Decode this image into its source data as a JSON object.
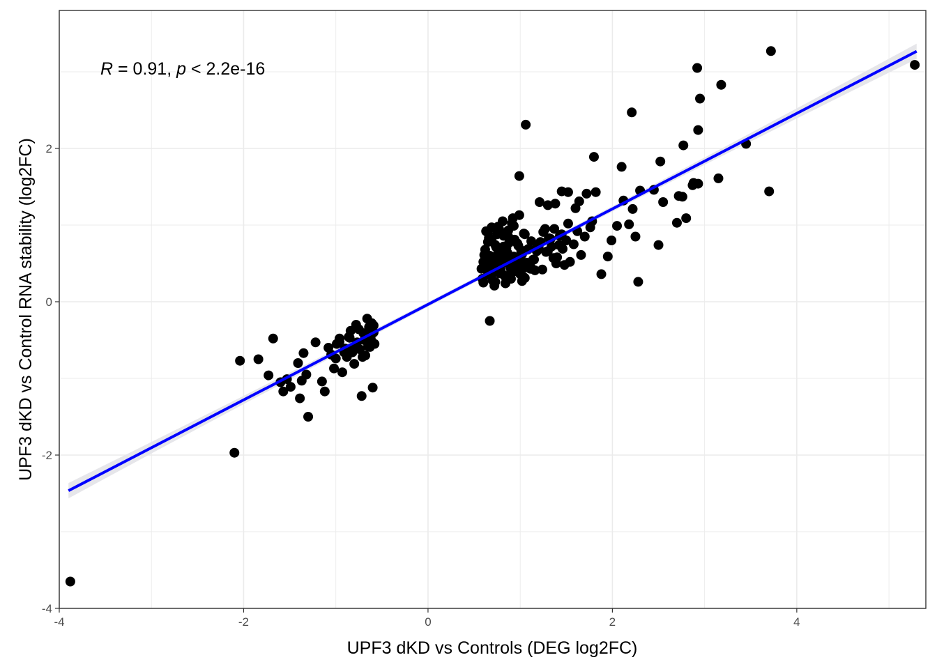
{
  "chart_data": {
    "type": "scatter",
    "xlabel": "UPF3 dKD vs Controls (DEG log2FC)",
    "ylabel": "UPF3 dKD vs Control RNA stability (log2FC)",
    "xlim": [
      -4.0,
      5.4
    ],
    "ylim": [
      -4.0,
      3.8
    ],
    "x_ticks": [
      -4,
      -2,
      0,
      2,
      4
    ],
    "x_tick_labels": [
      "-4",
      "-2",
      "0",
      "2",
      "4"
    ],
    "y_ticks": [
      -4,
      -2,
      0,
      2
    ],
    "y_tick_labels": [
      "-4",
      "-2",
      "0",
      "2"
    ],
    "grid": true,
    "annotation": {
      "r_symbol": "R",
      "r_text": " = 0.91, ",
      "p_symbol": "p",
      "p_text": " < 2.2e-16"
    },
    "regression_line": {
      "color": "#0000ff",
      "band_color": "#e6e6ea",
      "slope": 0.623,
      "intercept": -0.035,
      "x_range": [
        -3.9,
        5.3
      ]
    },
    "point_color": "#000000",
    "x": [
      -3.88,
      -2.1,
      -2.04,
      -1.84,
      -1.73,
      -1.68,
      -1.6,
      -1.57,
      -1.53,
      -1.49,
      -1.41,
      -1.39,
      -1.37,
      -1.35,
      -1.32,
      -1.3,
      -1.22,
      -1.15,
      -1.12,
      -1.08,
      -1.05,
      -1.02,
      -0.99,
      -0.96,
      -0.93,
      -0.9,
      -0.88,
      -0.85,
      -0.82,
      -0.8,
      -0.78,
      -0.75,
      -0.72,
      -0.7,
      -0.68,
      -0.66,
      -0.64,
      -0.62,
      -0.61,
      -0.6,
      -0.59,
      -0.58,
      -0.63,
      -0.71,
      -0.77,
      -0.81,
      -0.86,
      -0.91,
      -0.96,
      -1.0,
      -0.84,
      -0.74,
      -0.69,
      -0.65,
      -0.62,
      -0.59,
      0.67,
      0.58,
      0.6,
      0.62,
      0.63,
      0.65,
      0.67,
      0.69,
      0.7,
      0.72,
      0.74,
      0.76,
      0.78,
      0.8,
      0.82,
      0.84,
      0.86,
      0.88,
      0.9,
      0.92,
      0.94,
      0.96,
      0.98,
      1.0,
      1.02,
      1.04,
      1.06,
      1.08,
      1.1,
      1.12,
      1.14,
      1.16,
      1.18,
      1.2,
      0.59,
      0.61,
      0.64,
      0.66,
      0.68,
      0.71,
      0.73,
      0.75,
      0.77,
      0.79,
      0.81,
      0.83,
      0.85,
      0.87,
      0.89,
      0.91,
      0.93,
      0.95,
      0.97,
      0.99,
      1.01,
      1.03,
      1.05,
      1.07,
      1.09,
      1.11,
      0.6,
      0.62,
      0.65,
      0.68,
      0.7,
      0.73,
      0.76,
      0.79,
      0.82,
      0.85,
      0.88,
      0.91,
      0.94,
      0.97,
      1.0,
      1.03,
      0.72,
      0.78,
      0.84,
      0.9,
      0.96,
      1.02,
      0.69,
      0.75,
      0.81,
      0.87,
      0.93,
      0.99,
      1.22,
      1.25,
      1.28,
      1.31,
      1.34,
      1.37,
      1.4,
      1.43,
      1.46,
      1.5,
      1.54,
      1.58,
      1.62,
      1.66,
      1.7,
      1.24,
      1.3,
      1.36,
      1.42,
      1.48,
      1.27,
      1.33,
      1.39,
      1.45,
      1.52,
      1.05,
      1.12,
      1.18,
      1.15,
      1.21,
      1.3,
      1.38,
      1.45,
      1.52,
      1.6,
      1.64,
      1.72,
      1.78,
      1.82,
      1.88,
      1.95,
      1.99,
      2.05,
      2.12,
      2.18,
      2.22,
      2.25,
      2.3,
      2.45,
      2.5,
      2.52,
      2.55,
      2.7,
      2.72,
      2.76,
      2.8,
      2.88,
      2.93,
      2.95,
      3.15,
      3.18,
      3.45,
      3.7,
      3.72,
      5.28,
      2.92,
      2.93,
      2.87,
      2.77,
      2.1,
      1.06,
      0.99,
      1.8,
      2.28,
      0.65,
      2.21,
      1.76
    ],
    "y": [
      -3.65,
      -1.97,
      -0.77,
      -0.75,
      -0.96,
      -0.48,
      -1.05,
      -1.17,
      -1.01,
      -1.11,
      -0.8,
      -1.26,
      -1.03,
      -0.67,
      -0.95,
      -1.5,
      -0.53,
      -1.04,
      -1.17,
      -0.6,
      -0.69,
      -0.87,
      -0.55,
      -0.48,
      -0.92,
      -0.61,
      -0.72,
      -0.47,
      -0.66,
      -0.81,
      -0.3,
      -0.36,
      -1.23,
      -0.41,
      -0.7,
      -0.22,
      -0.33,
      -0.49,
      -0.28,
      -1.12,
      -0.4,
      -0.55,
      -0.59,
      -0.72,
      -0.53,
      -0.6,
      -0.46,
      -0.66,
      -0.52,
      -0.74,
      -0.38,
      -0.62,
      -0.5,
      -0.58,
      -0.44,
      -0.31,
      -0.25,
      0.43,
      0.52,
      0.68,
      0.92,
      0.35,
      0.6,
      0.81,
      0.28,
      0.47,
      0.71,
      0.98,
      0.39,
      0.55,
      0.86,
      0.33,
      0.64,
      0.77,
      0.42,
      1.09,
      0.58,
      0.49,
      0.73,
      0.36,
      0.62,
      0.89,
      0.45,
      0.68,
      0.5,
      0.79,
      0.55,
      0.41,
      0.66,
      0.72,
      0.3,
      0.61,
      0.44,
      0.83,
      0.52,
      0.38,
      0.74,
      0.57,
      0.95,
      0.48,
      0.63,
      0.34,
      0.7,
      0.85,
      0.46,
      1.02,
      0.59,
      0.4,
      0.76,
      0.53,
      0.67,
      0.32,
      0.88,
      0.51,
      0.69,
      0.43,
      0.25,
      0.47,
      0.78,
      0.36,
      0.58,
      0.26,
      0.63,
      0.41,
      0.72,
      0.29,
      0.55,
      0.38,
      0.81,
      0.45,
      0.6,
      0.33,
      0.21,
      0.37,
      0.24,
      0.3,
      0.42,
      0.27,
      0.97,
      0.88,
      1.05,
      0.93,
      0.99,
      1.13,
      0.78,
      0.91,
      0.65,
      0.83,
      0.72,
      0.95,
      0.58,
      0.86,
      0.69,
      0.8,
      0.52,
      0.75,
      0.92,
      0.61,
      0.85,
      0.42,
      0.66,
      0.57,
      0.74,
      0.48,
      0.95,
      0.82,
      0.5,
      0.88,
      1.02,
      0.31,
      0.44,
      0.7,
      0.55,
      1.3,
      1.26,
      1.28,
      1.44,
      1.43,
      1.22,
      1.31,
      1.41,
      1.05,
      1.43,
      0.36,
      0.59,
      0.8,
      0.99,
      1.32,
      1.01,
      1.21,
      0.85,
      1.45,
      1.46,
      0.74,
      1.83,
      1.3,
      1.03,
      1.38,
      1.37,
      1.09,
      1.55,
      2.24,
      2.65,
      1.61,
      2.83,
      2.06,
      1.44,
      3.27,
      3.09,
      3.05,
      1.54,
      1.52,
      2.04,
      1.76,
      2.31,
      1.64,
      1.89,
      0.26,
      0.9,
      2.47,
      0.97
    ]
  }
}
